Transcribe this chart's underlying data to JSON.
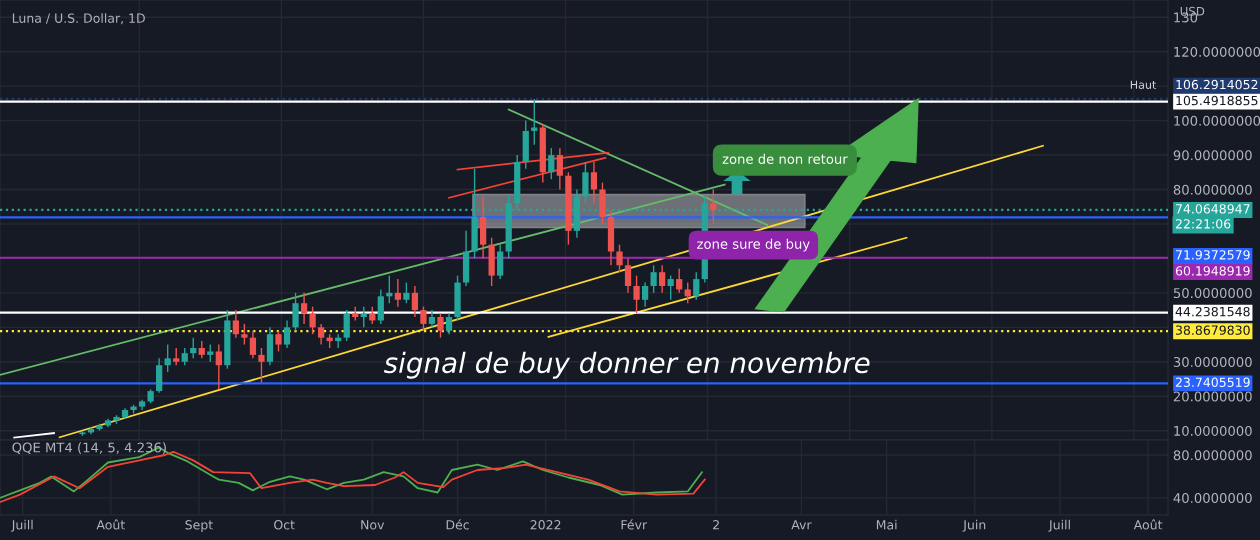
{
  "chart_data": [
    {
      "type": "candlestick",
      "title": "Luna / U.S. Dollar, 1D",
      "ylabel": "USD",
      "x": [
        "2021-07-22",
        "2021-07-25",
        "2021-07-28",
        "2021-07-31",
        "2021-08-03",
        "2021-08-06",
        "2021-08-09",
        "2021-08-12",
        "2021-08-15",
        "2021-08-18",
        "2021-08-21",
        "2021-08-24",
        "2021-08-27",
        "2021-08-30",
        "2021-09-02",
        "2021-09-05",
        "2021-09-08",
        "2021-09-11",
        "2021-09-14",
        "2021-09-17",
        "2021-09-20",
        "2021-09-23",
        "2021-09-26",
        "2021-09-29",
        "2021-10-02",
        "2021-10-05",
        "2021-10-08",
        "2021-10-11",
        "2021-10-14",
        "2021-10-17",
        "2021-10-20",
        "2021-10-23",
        "2021-10-26",
        "2021-10-29",
        "2021-11-01",
        "2021-11-04",
        "2021-11-07",
        "2021-11-10",
        "2021-11-13",
        "2021-11-16",
        "2021-11-19",
        "2021-11-22",
        "2021-11-25",
        "2021-11-28",
        "2021-12-01",
        "2021-12-04",
        "2021-12-07",
        "2021-12-10",
        "2021-12-13",
        "2021-12-16",
        "2021-12-19",
        "2021-12-22",
        "2021-12-25",
        "2021-12-28",
        "2021-12-31",
        "2022-01-03",
        "2022-01-06",
        "2022-01-09",
        "2022-01-12",
        "2022-01-15",
        "2022-01-18",
        "2022-01-21",
        "2022-01-24",
        "2022-01-27",
        "2022-01-30",
        "2022-02-02",
        "2022-02-05",
        "2022-02-08",
        "2022-02-11",
        "2022-02-14",
        "2022-02-17",
        "2022-02-20",
        "2022-02-23",
        "2022-02-26",
        "2022-03-01"
      ],
      "ohlc": [
        [
          9,
          10,
          8.5,
          9.5
        ],
        [
          9.5,
          11,
          9,
          10.5
        ],
        [
          10.5,
          12,
          10,
          11.5
        ],
        [
          11.5,
          13.5,
          11,
          13
        ],
        [
          13,
          14.5,
          12,
          14
        ],
        [
          14,
          16.5,
          13.5,
          16
        ],
        [
          16,
          17.5,
          15,
          17
        ],
        [
          17,
          19,
          16,
          18.5
        ],
        [
          18.5,
          22,
          18,
          21.5
        ],
        [
          21.5,
          31,
          21,
          29
        ],
        [
          29,
          35,
          27,
          31
        ],
        [
          31,
          34,
          29,
          30
        ],
        [
          30,
          34,
          29,
          32.5
        ],
        [
          32.5,
          37,
          31,
          34
        ],
        [
          34,
          36,
          31,
          32
        ],
        [
          32,
          35,
          30,
          33
        ],
        [
          33,
          35,
          22,
          29
        ],
        [
          29,
          45,
          28,
          42
        ],
        [
          42,
          45,
          37,
          38
        ],
        [
          38,
          41,
          35,
          37
        ],
        [
          37,
          39,
          31,
          32
        ],
        [
          32,
          34,
          24,
          30
        ],
        [
          30,
          40,
          29,
          38
        ],
        [
          38,
          39,
          33,
          35
        ],
        [
          35,
          42,
          34,
          40
        ],
        [
          40,
          50,
          39,
          47
        ],
        [
          47,
          50,
          41,
          44
        ],
        [
          44,
          46,
          38,
          40
        ],
        [
          40,
          41,
          35,
          37
        ],
        [
          37,
          38,
          34,
          36
        ],
        [
          36,
          38,
          34,
          37
        ],
        [
          37,
          45,
          36,
          44
        ],
        [
          44,
          46,
          42,
          43
        ],
        [
          43,
          46,
          40,
          44
        ],
        [
          44,
          46,
          41,
          42
        ],
        [
          42,
          51,
          41,
          49
        ],
        [
          49,
          55,
          47,
          50
        ],
        [
          50,
          54,
          46,
          48
        ],
        [
          48,
          53,
          47,
          50
        ],
        [
          50,
          52,
          43,
          45
        ],
        [
          45,
          46,
          39,
          41
        ],
        [
          41,
          45,
          40,
          43
        ],
        [
          43,
          44,
          37,
          39
        ],
        [
          39,
          44,
          38,
          43
        ],
        [
          43,
          55,
          42,
          53
        ],
        [
          53,
          68,
          52,
          62
        ],
        [
          62,
          86,
          60,
          72
        ],
        [
          72,
          78,
          60,
          64
        ],
        [
          64,
          66,
          52,
          55
        ],
        [
          55,
          64,
          54,
          62
        ],
        [
          62,
          78,
          60,
          76
        ],
        [
          76,
          90,
          74,
          88
        ],
        [
          88,
          100,
          86,
          97
        ],
        [
          97,
          106.3,
          93,
          98
        ],
        [
          98,
          99,
          82,
          85
        ],
        [
          85,
          92,
          83,
          90
        ],
        [
          90,
          92,
          80,
          84
        ],
        [
          84,
          85,
          64,
          68
        ],
        [
          68,
          80,
          66,
          78
        ],
        [
          78,
          88,
          76,
          85
        ],
        [
          85,
          88,
          76,
          80
        ],
        [
          80,
          82,
          70,
          72
        ],
        [
          72,
          74,
          58,
          62
        ],
        [
          62,
          64,
          56,
          58
        ],
        [
          58,
          60,
          50,
          52
        ],
        [
          52,
          55,
          44,
          48
        ],
        [
          48,
          53,
          46,
          52
        ],
        [
          52,
          58,
          50,
          56
        ],
        [
          56,
          58,
          50,
          52
        ],
        [
          52,
          55,
          48,
          54
        ],
        [
          54,
          57,
          50,
          51
        ],
        [
          51,
          53,
          47,
          49
        ],
        [
          49,
          56,
          48,
          54
        ],
        [
          54,
          78,
          53,
          76
        ],
        [
          76,
          80,
          70,
          74
        ]
      ],
      "series": [
        {
          "type": "line",
          "color": "#66bb6a",
          "x": [
            "2021-06-23",
            "2022-03-05"
          ],
          "values": [
            26.2,
            81.4
          ]
        },
        {
          "type": "line",
          "color": "#fdd835",
          "x": [
            "2021-07-14",
            "2022-06-25"
          ],
          "values": [
            8.1,
            92.7
          ]
        },
        {
          "type": "line",
          "color": "#fdd835",
          "x": [
            "2022-01-02",
            "2022-05-08"
          ],
          "values": [
            37.2,
            66
          ]
        },
        {
          "type": "line",
          "color": "#66bb6a",
          "x": [
            "2021-12-19",
            "2022-03-20"
          ],
          "values": [
            103.2,
            69.7
          ]
        },
        {
          "type": "line",
          "color": "#f44336",
          "x": [
            "2021-12-01",
            "2022-01-23"
          ],
          "values": [
            85.8,
            90.7
          ]
        },
        {
          "type": "line",
          "color": "#f44336",
          "x": [
            "2021-11-28",
            "2022-01-22"
          ],
          "values": [
            77.6,
            89.2
          ]
        },
        {
          "type": "line",
          "color": "#ffffff",
          "x": [
            "2021-06-28",
            "2021-07-12"
          ],
          "values": [
            8,
            9.3
          ]
        }
      ],
      "bands": [
        {
          "axis": "y",
          "from": 69,
          "to": 78.5,
          "color": "#d8d8d8"
        }
      ],
      "ref_lines": [
        {
          "axis": "y",
          "value": 106.2914052,
          "label": "106.2914052",
          "color": "#1e3a6e",
          "line_style": "dotted"
        },
        {
          "axis": "y",
          "value": 105.4918855,
          "label": "105.4918855",
          "color": "#ffffff"
        },
        {
          "axis": "y",
          "value": 74.0648947,
          "label": "74.0648947",
          "color": "#26a69a",
          "line_style": "dotted"
        },
        {
          "axis": "y",
          "value": 71.9372579,
          "label": "71.9372579",
          "color": "#2962ff"
        },
        {
          "axis": "y",
          "value": 60.1948919,
          "label": "60.1948919",
          "color": "#9c27b0"
        },
        {
          "axis": "y",
          "value": 44.2381548,
          "label": "44.2381548",
          "color": "#ffffff"
        },
        {
          "axis": "y",
          "value": 38.867983,
          "label": "38.8679830",
          "color": "#ffeb3b",
          "line_style": "dotted"
        },
        {
          "axis": "y",
          "value": 23.7405519,
          "label": "23.7405519",
          "color": "#2962ff"
        }
      ],
      "annotations": [
        "zone de non retour",
        "zone sure de buy",
        "signal de buy donner en novembre",
        "Haut",
        "22:21:06"
      ],
      "xlim": [
        "2021-06-23",
        "2022-08-08"
      ],
      "ylim": [
        7.3,
        135
      ],
      "yticks": [
        {
          "value": 10,
          "label": "10.0000000"
        },
        {
          "value": 20,
          "label": "20.0000000"
        },
        {
          "value": 30,
          "label": "30.0000000"
        },
        {
          "value": 40,
          "label": null
        },
        {
          "value": 50,
          "label": "50.0000000"
        },
        {
          "value": 60,
          "label": null
        },
        {
          "value": 70,
          "label": null
        },
        {
          "value": 80,
          "label": "80.0000000"
        },
        {
          "value": 90,
          "label": "90.0000000"
        },
        {
          "value": 100,
          "label": "100.0000000"
        },
        {
          "value": 110,
          "label": null
        },
        {
          "value": 120,
          "label": "120.0000000"
        },
        {
          "value": 130,
          "label": "130"
        }
      ],
      "tick_labels": "y",
      "grid": true
    },
    {
      "type": "line",
      "title": "QQE MT4 (14, 5, 4.236)",
      "series": [
        {
          "color": "#4caf50",
          "x": [
            "2021-06-23",
            "2021-06-30",
            "2021-07-07",
            "2021-07-11",
            "2021-07-19",
            "2021-07-24",
            "2021-07-31",
            "2021-08-11",
            "2021-08-18",
            "2021-08-21",
            "2021-08-28",
            "2021-09-06",
            "2021-09-08",
            "2021-09-15",
            "2021-09-20",
            "2021-09-26",
            "2021-10-03",
            "2021-10-08",
            "2021-10-16",
            "2021-10-22",
            "2021-10-29",
            "2021-11-05",
            "2021-11-12",
            "2021-11-17",
            "2021-11-24",
            "2021-11-29",
            "2021-12-08",
            "2021-12-15",
            "2021-12-24",
            "2021-12-31",
            "2022-01-09",
            "2022-01-20",
            "2022-01-28",
            "2022-02-09",
            "2022-02-20",
            "2022-02-25"
          ],
          "values": [
            40,
            47,
            54,
            60,
            46,
            57,
            73,
            78,
            87,
            82,
            74,
            60,
            57,
            54,
            47,
            55,
            60,
            57,
            48,
            54,
            57,
            64,
            60,
            49,
            45,
            66,
            71,
            66,
            74,
            66,
            59,
            52,
            43,
            45,
            46,
            64
          ]
        },
        {
          "color": "#f44336",
          "x": [
            "2021-06-23",
            "2021-06-30",
            "2021-07-12",
            "2021-07-21",
            "2021-07-31",
            "2021-08-11",
            "2021-08-20",
            "2021-08-23",
            "2021-08-30",
            "2021-09-06",
            "2021-09-19",
            "2021-09-23",
            "2021-10-03",
            "2021-10-11",
            "2021-10-16",
            "2021-10-22",
            "2021-11-02",
            "2021-11-09",
            "2021-11-12",
            "2021-11-17",
            "2021-11-26",
            "2021-11-29",
            "2021-12-08",
            "2021-12-18",
            "2021-12-25",
            "2022-01-05",
            "2022-01-16",
            "2022-01-27",
            "2022-02-09",
            "2022-02-22",
            "2022-02-26"
          ],
          "values": [
            36,
            43,
            60,
            49,
            69,
            75,
            80,
            83,
            75,
            64,
            63,
            49,
            54,
            57,
            54,
            51,
            52,
            59,
            64,
            54,
            50,
            57,
            66,
            68,
            71,
            64,
            57,
            46,
            43,
            44,
            57
          ]
        }
      ],
      "xlim": [
        "2021-06-23",
        "2022-08-08"
      ],
      "xticks": [
        {
          "value": "2021-07-01",
          "label": "Juill"
        },
        {
          "value": "2021-08-01",
          "label": "Août"
        },
        {
          "value": "2021-09-01",
          "label": "Sept"
        },
        {
          "value": "2021-10-01",
          "label": "Oct"
        },
        {
          "value": "2021-11-01",
          "label": "Nov"
        },
        {
          "value": "2021-12-01",
          "label": "Déc"
        },
        {
          "value": "2022-01-01",
          "label": "2022"
        },
        {
          "value": "2022-02-01",
          "label": "Févr"
        },
        {
          "value": "2022-03-02",
          "label": "2"
        },
        {
          "value": "2022-04-01",
          "label": "Avr"
        },
        {
          "value": "2022-05-01",
          "label": "Mai"
        },
        {
          "value": "2022-06-01",
          "label": "Juin"
        },
        {
          "value": "2022-07-01",
          "label": "Juill"
        },
        {
          "value": "2022-08-01",
          "label": "Août"
        }
      ],
      "ylim": [
        24,
        94
      ],
      "yticks": [
        {
          "value": 40,
          "label": "40.0000000"
        },
        {
          "value": 80,
          "label": "80.0000000"
        }
      ],
      "grid": true
    }
  ]
}
